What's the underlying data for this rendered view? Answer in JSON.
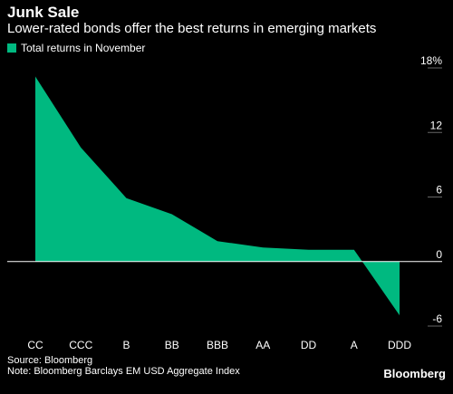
{
  "header": {
    "title": "Junk Sale",
    "subtitle": "Lower-rated bonds offer the best returns in emerging markets"
  },
  "legend": {
    "label": "Total returns in November"
  },
  "colors": {
    "series": "#00b980",
    "background": "#000000",
    "gridline": "#666666",
    "zeroline": "#ffffff"
  },
  "footer": {
    "source": "Source: Bloomberg",
    "note": "Note: Bloomberg Barclays EM USD Aggregate Index"
  },
  "brand": "Bloomberg",
  "chart_data": {
    "type": "area",
    "categories": [
      "CC",
      "CCC",
      "B",
      "BB",
      "BBB",
      "AA",
      "DD",
      "A",
      "DDD"
    ],
    "series": [
      {
        "name": "Total returns in November",
        "values": [
          17.2,
          10.6,
          5.9,
          4.4,
          1.9,
          1.3,
          1.1,
          1.1,
          -5.0
        ]
      }
    ],
    "ylim": [
      -6,
      18
    ],
    "yticks": [
      18,
      12,
      6,
      0,
      -6
    ],
    "ytick_labels": [
      "18%",
      "12",
      "6",
      "0",
      "-6"
    ],
    "grid": true,
    "legend_position": "top-left"
  }
}
